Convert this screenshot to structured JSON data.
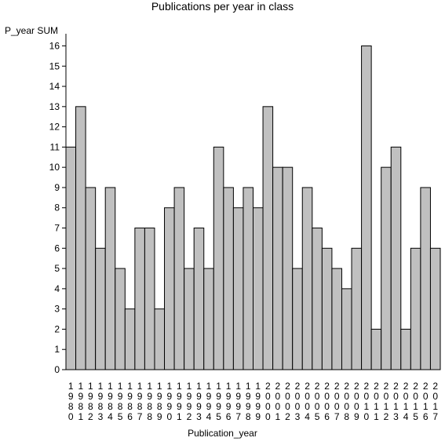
{
  "chart_data": {
    "type": "bar",
    "title": "Publications per year in class",
    "xlabel": "Publication_year",
    "ylabel": "P_year SUM",
    "ylim": [
      0,
      16.6
    ],
    "yticks": [
      0,
      1,
      2,
      3,
      4,
      5,
      6,
      7,
      8,
      9,
      10,
      11,
      12,
      13,
      14,
      15,
      16
    ],
    "grid": false,
    "categories": [
      "1980",
      "1981",
      "1982",
      "1983",
      "1984",
      "1985",
      "1986",
      "1987",
      "1988",
      "1989",
      "1990",
      "1991",
      "1992",
      "1993",
      "1994",
      "1995",
      "1996",
      "1997",
      "1998",
      "1999",
      "2000",
      "2001",
      "2002",
      "2003",
      "2004",
      "2005",
      "2006",
      "2007",
      "2008",
      "2009",
      "2010",
      "2011",
      "2012",
      "2013",
      "2014",
      "2015",
      "2016",
      "2017"
    ],
    "values": [
      11,
      13,
      9,
      6,
      9,
      5,
      3,
      7,
      7,
      3,
      8,
      9,
      5,
      7,
      5,
      11,
      9,
      8,
      9,
      8,
      13,
      10,
      10,
      5,
      9,
      7,
      6,
      5,
      4,
      6,
      16,
      2,
      10,
      11,
      2,
      6,
      9,
      6
    ],
    "colors": {
      "bar_fill": "#c0c0c0",
      "bar_stroke": "#000000",
      "axis": "#000000"
    }
  }
}
